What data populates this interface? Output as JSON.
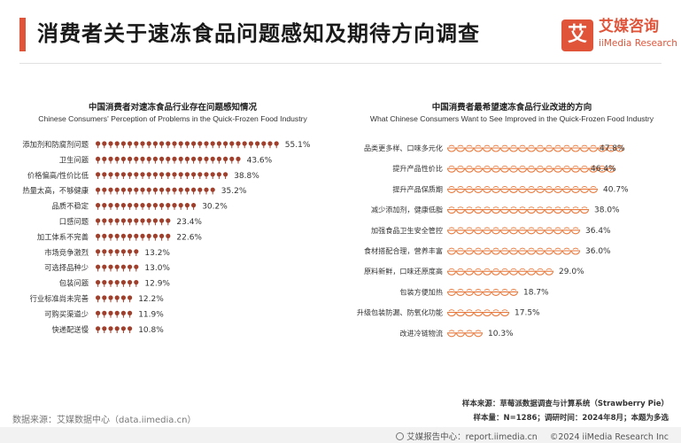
{
  "header": {
    "title": "消费者关于速冻食品问题感知及期待方向调查",
    "accent_color": "#e0553a"
  },
  "logo": {
    "mark": "艾",
    "name": "艾媒咨询",
    "sub": "iiMedia Research",
    "color": "#e0553a"
  },
  "chart_data": [
    {
      "type": "bar",
      "title": "中国消费者对速冻食品行业存在问题感知情况",
      "subtitle": "Chinese Consumers' Perception of Problems in the Quick-Frozen Food Industry",
      "unit": "%",
      "icon": "lollipop-icon",
      "color": "#a0402c",
      "categories": [
        "添加剂和防腐剂问题",
        "卫生问题",
        "价格偏高/性价比低",
        "热量太高，不够健康",
        "品质不稳定",
        "口感问题",
        "加工体系不完善",
        "市场竞争激烈",
        "可选择品种少",
        "包装问题",
        "行业标准尚未完善",
        "可购买渠道少",
        "快递配送慢"
      ],
      "values": [
        55.1,
        43.6,
        38.8,
        35.2,
        30.2,
        23.4,
        22.6,
        13.2,
        13.0,
        12.9,
        12.2,
        11.9,
        10.8
      ],
      "labels": [
        "55.1%",
        "43.6%",
        "38.8%",
        "35.2%",
        "30.2%",
        "23.4%",
        "22.6%",
        "13.2%",
        "13.0%",
        "12.9%",
        "12.2%",
        "11.9%",
        "10.8%"
      ]
    },
    {
      "type": "bar",
      "title": "中国消费者最希望速冻食品行业改进的方向",
      "subtitle": "What Chinese Consumers Want to See Improved in the Quick-Frozen Food Industry",
      "unit": "%",
      "icon": "dumpling-icon",
      "color": "#e87a3e",
      "categories": [
        "品类更多样、口味多元化",
        "提升产品性价比",
        "提升产品保质期",
        "减少添加剂，健康低脂",
        "加强食品卫生安全管控",
        "食材搭配合理，营养丰富",
        "原料新鲜，口味还原度高",
        "包装方便加热",
        "升级包装防漏、防氧化功能",
        "改进冷链物流"
      ],
      "values": [
        47.8,
        46.4,
        40.7,
        38.0,
        36.4,
        36.0,
        29.0,
        18.7,
        17.5,
        10.3
      ],
      "labels": [
        "47.8%",
        "46.4%",
        "40.7%",
        "38.0%",
        "36.4%",
        "36.0%",
        "29.0%",
        "18.7%",
        "17.5%",
        "10.3%"
      ]
    }
  ],
  "footer": {
    "data_source": "数据来源：艾媒数据中心（data.iimedia.cn）",
    "sample_source": "样本来源：草莓派数据调查与计算系统（Strawberry Pie）",
    "sample_info": "样本量：N=1286；调研时间：2024年8月；本题为多选",
    "report_center": "艾媒报告中心：report.iimedia.cn",
    "copyright": "©2024  iiMedia Research  Inc"
  }
}
